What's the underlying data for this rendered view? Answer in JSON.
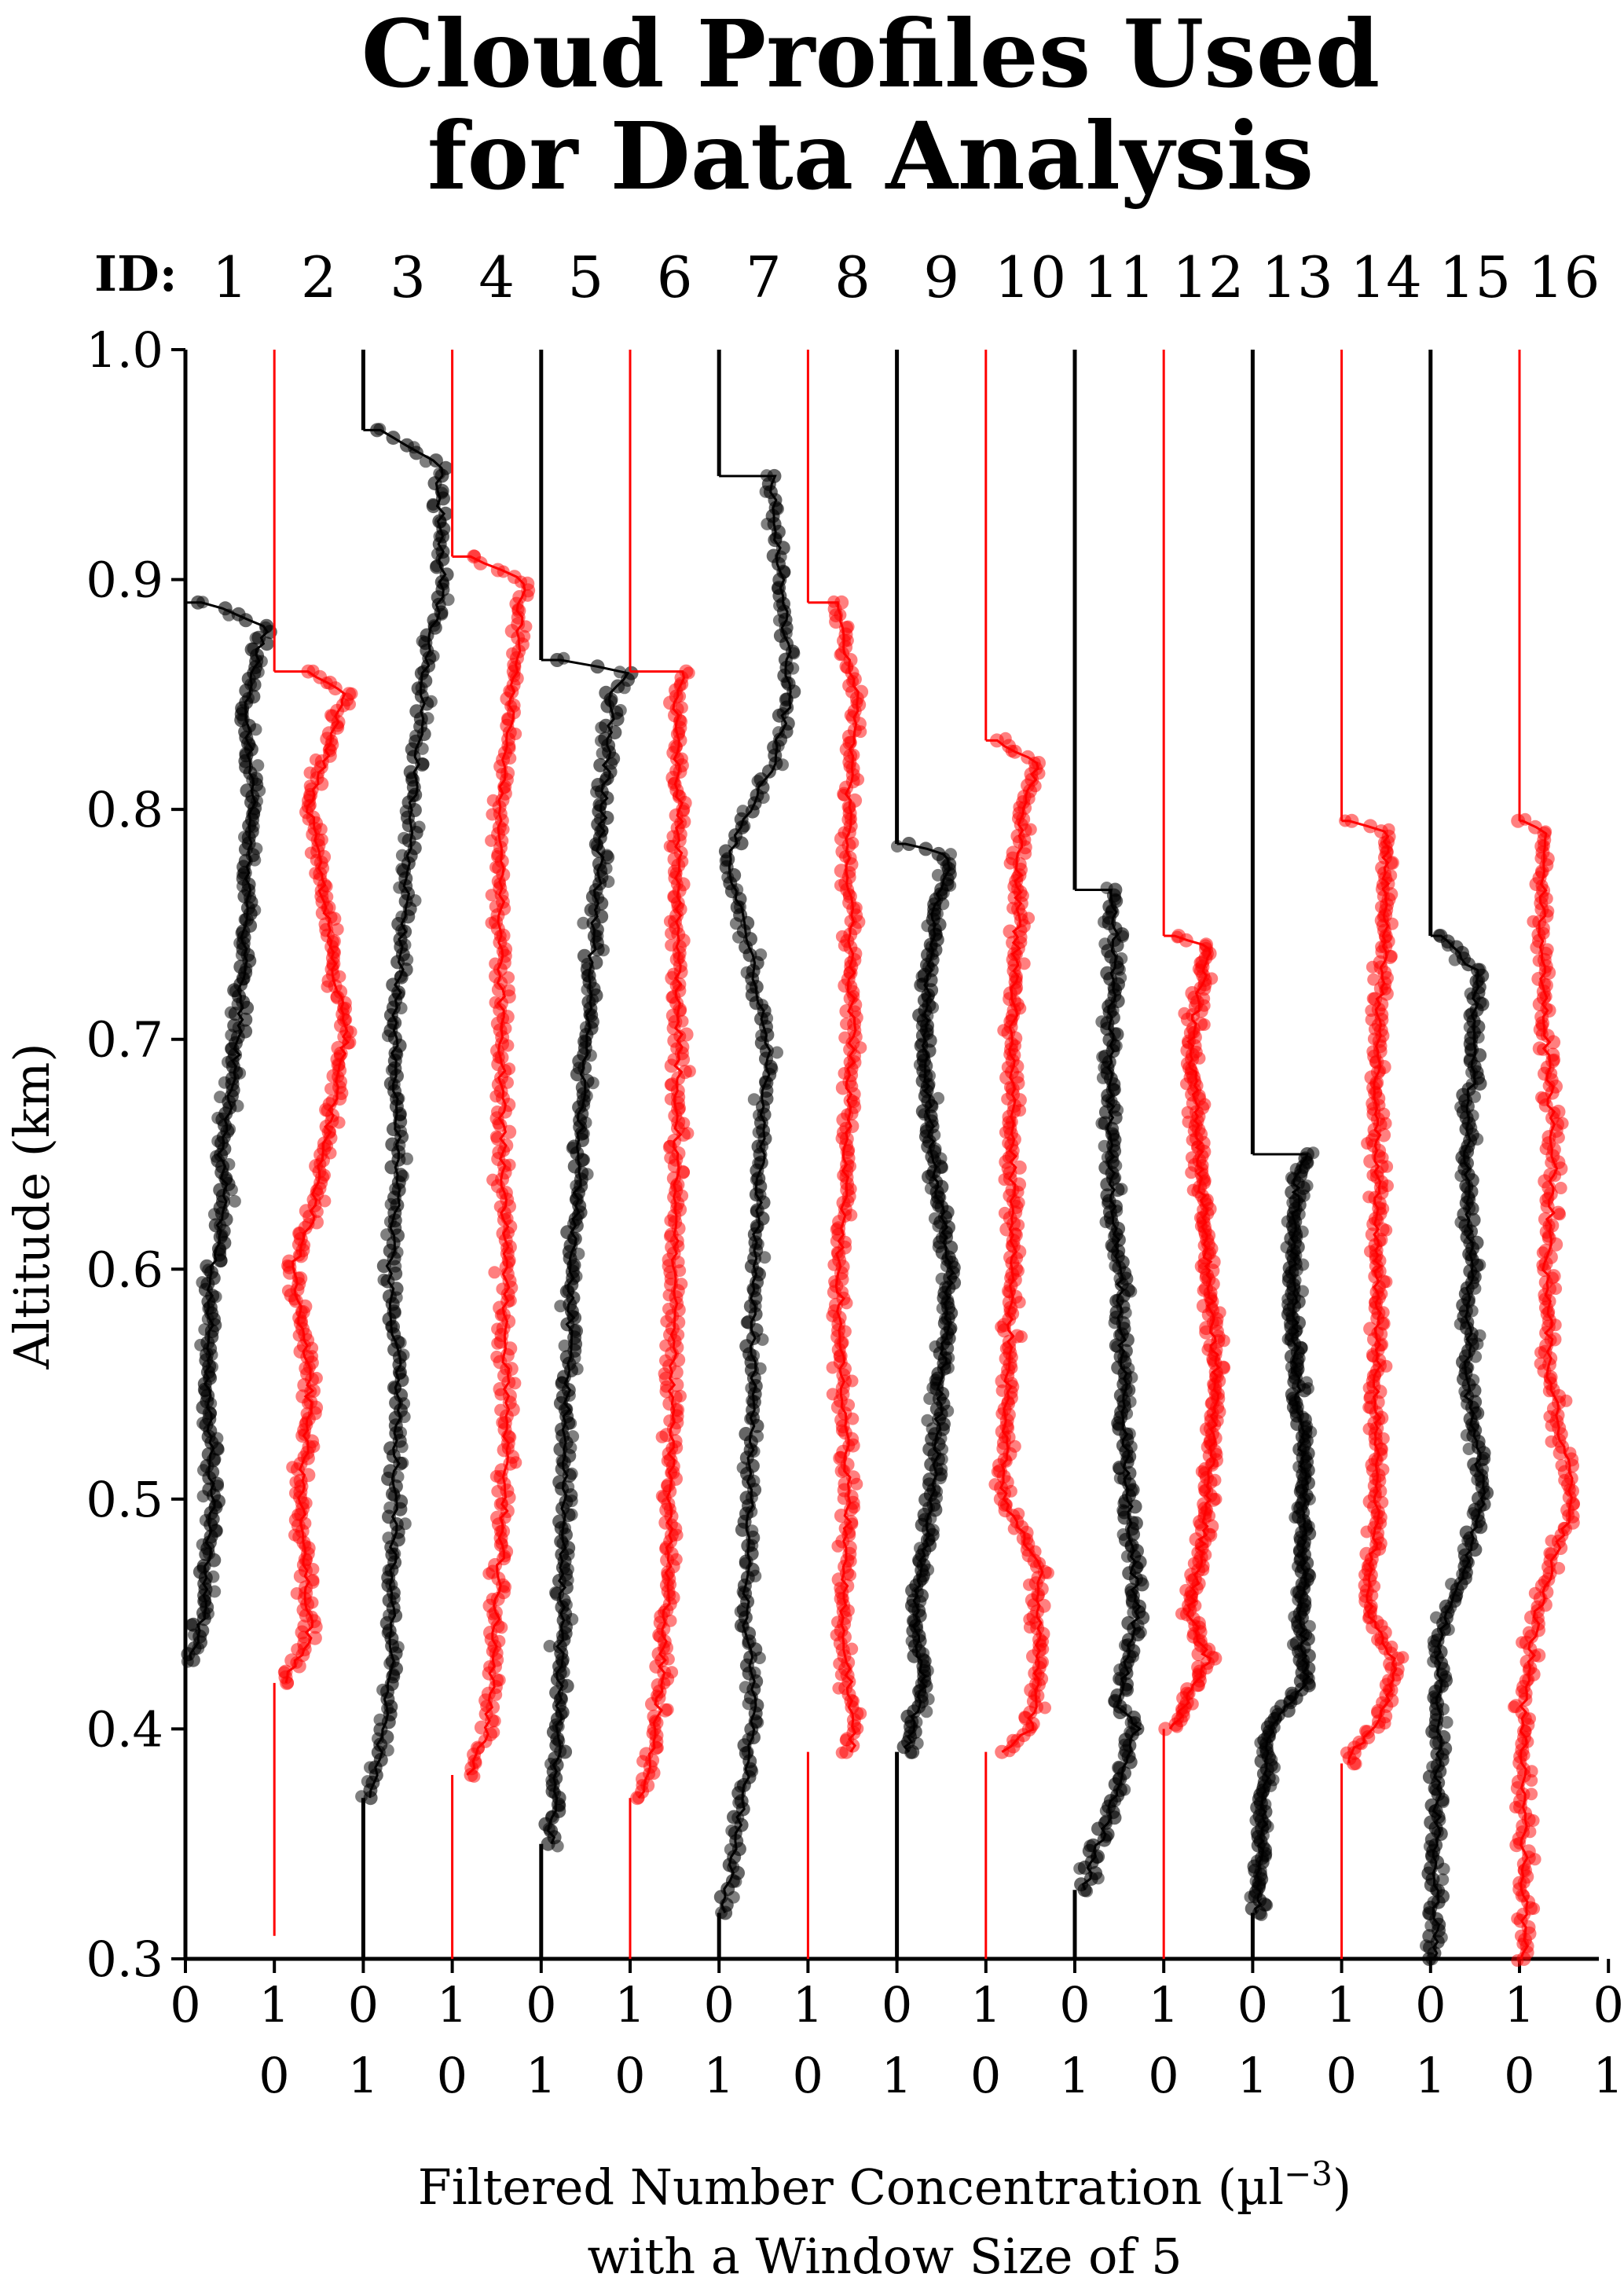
{
  "chart_data": {
    "type": "scatter",
    "title_lines": [
      "Cloud Profiles Used",
      "for Data Analysis"
    ],
    "id_prefix": "ID:",
    "ylabel": "Altitude (km)",
    "xlabel_lines": [
      "Filtered Number Concentration (µl",
      "with a Window Size of 5"
    ],
    "xlabel_superscript": "−3",
    "xlabel_close": ")",
    "ylim": [
      0.3,
      1.0
    ],
    "yticks": [
      "0.3",
      "0.4",
      "0.5",
      "0.6",
      "0.7",
      "0.8",
      "0.9",
      "1.0"
    ],
    "xtick_labels_black": [
      "0",
      "1"
    ],
    "xtick_labels_red": [
      "0",
      "1"
    ],
    "colors": {
      "black": "#000000",
      "red": "#ff0000"
    },
    "series": [
      {
        "id": "1",
        "color": "black",
        "cloud_top": 0.89,
        "cloud_base": 0.43,
        "profile": [
          [
            0.43,
            0.05
          ],
          [
            0.45,
            0.2
          ],
          [
            0.5,
            0.3
          ],
          [
            0.55,
            0.25
          ],
          [
            0.6,
            0.3
          ],
          [
            0.63,
            0.45
          ],
          [
            0.65,
            0.4
          ],
          [
            0.7,
            0.6
          ],
          [
            0.8,
            0.75
          ],
          [
            0.85,
            0.7
          ],
          [
            0.88,
            0.9
          ],
          [
            0.89,
            0.2
          ]
        ]
      },
      {
        "id": "2",
        "color": "red",
        "cloud_top": 0.86,
        "cloud_base": 0.42,
        "profile": [
          [
            0.42,
            0.1
          ],
          [
            0.44,
            0.4
          ],
          [
            0.5,
            0.3
          ],
          [
            0.55,
            0.4
          ],
          [
            0.6,
            0.2
          ],
          [
            0.62,
            0.4
          ],
          [
            0.7,
            0.8
          ],
          [
            0.75,
            0.6
          ],
          [
            0.8,
            0.4
          ],
          [
            0.85,
            0.8
          ],
          [
            0.86,
            0.4
          ]
        ]
      },
      {
        "id": "3",
        "color": "black",
        "cloud_top": 0.965,
        "cloud_base": 0.37,
        "profile": [
          [
            0.37,
            0.1
          ],
          [
            0.42,
            0.3
          ],
          [
            0.5,
            0.35
          ],
          [
            0.55,
            0.4
          ],
          [
            0.6,
            0.3
          ],
          [
            0.64,
            0.4
          ],
          [
            0.7,
            0.35
          ],
          [
            0.8,
            0.55
          ],
          [
            0.86,
            0.7
          ],
          [
            0.9,
            0.9
          ],
          [
            0.95,
            0.85
          ],
          [
            0.965,
            0.2
          ]
        ]
      },
      {
        "id": "4",
        "color": "red",
        "cloud_top": 0.91,
        "cloud_base": 0.38,
        "profile": [
          [
            0.38,
            0.2
          ],
          [
            0.4,
            0.4
          ],
          [
            0.45,
            0.5
          ],
          [
            0.5,
            0.6
          ],
          [
            0.6,
            0.6
          ],
          [
            0.7,
            0.55
          ],
          [
            0.8,
            0.55
          ],
          [
            0.86,
            0.7
          ],
          [
            0.9,
            0.8
          ],
          [
            0.91,
            0.2
          ]
        ]
      },
      {
        "id": "5",
        "color": "black",
        "cloud_top": 0.865,
        "cloud_base": 0.35,
        "profile": [
          [
            0.35,
            0.1
          ],
          [
            0.4,
            0.2
          ],
          [
            0.5,
            0.25
          ],
          [
            0.6,
            0.35
          ],
          [
            0.7,
            0.5
          ],
          [
            0.8,
            0.7
          ],
          [
            0.85,
            0.8
          ],
          [
            0.86,
            0.95
          ],
          [
            0.865,
            0.2
          ]
        ]
      },
      {
        "id": "6",
        "color": "red",
        "cloud_top": 0.86,
        "cloud_base": 0.37,
        "profile": [
          [
            0.37,
            0.1
          ],
          [
            0.4,
            0.3
          ],
          [
            0.45,
            0.4
          ],
          [
            0.5,
            0.45
          ],
          [
            0.6,
            0.5
          ],
          [
            0.7,
            0.55
          ],
          [
            0.8,
            0.55
          ],
          [
            0.85,
            0.5
          ],
          [
            0.86,
            0.6
          ]
        ]
      },
      {
        "id": "7",
        "color": "black",
        "cloud_top": 0.945,
        "cloud_base": 0.32,
        "profile": [
          [
            0.32,
            0.05
          ],
          [
            0.4,
            0.4
          ],
          [
            0.45,
            0.3
          ],
          [
            0.5,
            0.35
          ],
          [
            0.6,
            0.4
          ],
          [
            0.7,
            0.55
          ],
          [
            0.78,
            0.1
          ],
          [
            0.82,
            0.6
          ],
          [
            0.85,
            0.8
          ],
          [
            0.9,
            0.7
          ],
          [
            0.945,
            0.6
          ]
        ]
      },
      {
        "id": "8",
        "color": "red",
        "cloud_top": 0.89,
        "cloud_base": 0.39,
        "profile": [
          [
            0.39,
            0.5
          ],
          [
            0.4,
            0.5
          ],
          [
            0.45,
            0.4
          ],
          [
            0.5,
            0.45
          ],
          [
            0.6,
            0.35
          ],
          [
            0.7,
            0.5
          ],
          [
            0.8,
            0.45
          ],
          [
            0.85,
            0.55
          ],
          [
            0.89,
            0.3
          ]
        ]
      },
      {
        "id": "9",
        "color": "black",
        "cloud_top": 0.785,
        "cloud_base": 0.39,
        "profile": [
          [
            0.39,
            0.1
          ],
          [
            0.42,
            0.3
          ],
          [
            0.45,
            0.2
          ],
          [
            0.5,
            0.4
          ],
          [
            0.55,
            0.5
          ],
          [
            0.6,
            0.6
          ],
          [
            0.65,
            0.4
          ],
          [
            0.7,
            0.3
          ],
          [
            0.75,
            0.4
          ],
          [
            0.78,
            0.6
          ],
          [
            0.785,
            0.1
          ]
        ]
      },
      {
        "id": "10",
        "color": "red",
        "cloud_top": 0.83,
        "cloud_base": 0.39,
        "profile": [
          [
            0.39,
            0.2
          ],
          [
            0.4,
            0.5
          ],
          [
            0.43,
            0.6
          ],
          [
            0.47,
            0.6
          ],
          [
            0.5,
            0.2
          ],
          [
            0.6,
            0.3
          ],
          [
            0.7,
            0.3
          ],
          [
            0.8,
            0.4
          ],
          [
            0.82,
            0.6
          ],
          [
            0.83,
            0.1
          ]
        ]
      },
      {
        "id": "11",
        "color": "black",
        "cloud_top": 0.765,
        "cloud_base": 0.33,
        "profile": [
          [
            0.33,
            0.1
          ],
          [
            0.4,
            0.7
          ],
          [
            0.41,
            0.5
          ],
          [
            0.45,
            0.7
          ],
          [
            0.5,
            0.6
          ],
          [
            0.55,
            0.55
          ],
          [
            0.6,
            0.5
          ],
          [
            0.65,
            0.4
          ],
          [
            0.7,
            0.4
          ],
          [
            0.75,
            0.45
          ],
          [
            0.765,
            0.4
          ]
        ]
      },
      {
        "id": "12",
        "color": "red",
        "cloud_top": 0.745,
        "cloud_base": 0.4,
        "profile": [
          [
            0.4,
            0.1
          ],
          [
            0.43,
            0.5
          ],
          [
            0.45,
            0.3
          ],
          [
            0.5,
            0.5
          ],
          [
            0.55,
            0.6
          ],
          [
            0.6,
            0.5
          ],
          [
            0.65,
            0.4
          ],
          [
            0.7,
            0.3
          ],
          [
            0.74,
            0.5
          ],
          [
            0.745,
            0.1
          ]
        ]
      },
      {
        "id": "13",
        "color": "black",
        "cloud_top": 0.65,
        "cloud_base": 0.32,
        "profile": [
          [
            0.32,
            0.05
          ],
          [
            0.4,
            0.2
          ],
          [
            0.42,
            0.6
          ],
          [
            0.45,
            0.55
          ],
          [
            0.5,
            0.6
          ],
          [
            0.55,
            0.5
          ],
          [
            0.6,
            0.45
          ],
          [
            0.64,
            0.5
          ],
          [
            0.65,
            0.6
          ]
        ]
      },
      {
        "id": "14",
        "color": "red",
        "cloud_top": 0.795,
        "cloud_base": 0.385,
        "profile": [
          [
            0.385,
            0.05
          ],
          [
            0.41,
            0.5
          ],
          [
            0.43,
            0.6
          ],
          [
            0.45,
            0.3
          ],
          [
            0.5,
            0.4
          ],
          [
            0.6,
            0.4
          ],
          [
            0.7,
            0.4
          ],
          [
            0.75,
            0.5
          ],
          [
            0.79,
            0.5
          ],
          [
            0.795,
            0.1
          ]
        ]
      },
      {
        "id": "15",
        "color": "black",
        "cloud_top": 0.745,
        "cloud_base": 0.3,
        "profile": [
          [
            0.3,
            0.05
          ],
          [
            0.44,
            0.1
          ],
          [
            0.46,
            0.3
          ],
          [
            0.5,
            0.6
          ],
          [
            0.55,
            0.4
          ],
          [
            0.6,
            0.45
          ],
          [
            0.65,
            0.4
          ],
          [
            0.7,
            0.5
          ],
          [
            0.73,
            0.5
          ],
          [
            0.745,
            0.1
          ]
        ]
      },
      {
        "id": "16",
        "color": "red",
        "cloud_top": 0.795,
        "cloud_base": 0.3,
        "profile": [
          [
            0.3,
            0.05
          ],
          [
            0.41,
            0.05
          ],
          [
            0.45,
            0.2
          ],
          [
            0.5,
            0.6
          ],
          [
            0.55,
            0.35
          ],
          [
            0.6,
            0.3
          ],
          [
            0.65,
            0.4
          ],
          [
            0.7,
            0.3
          ],
          [
            0.75,
            0.25
          ],
          [
            0.79,
            0.3
          ],
          [
            0.795,
            0.05
          ]
        ]
      }
    ]
  }
}
